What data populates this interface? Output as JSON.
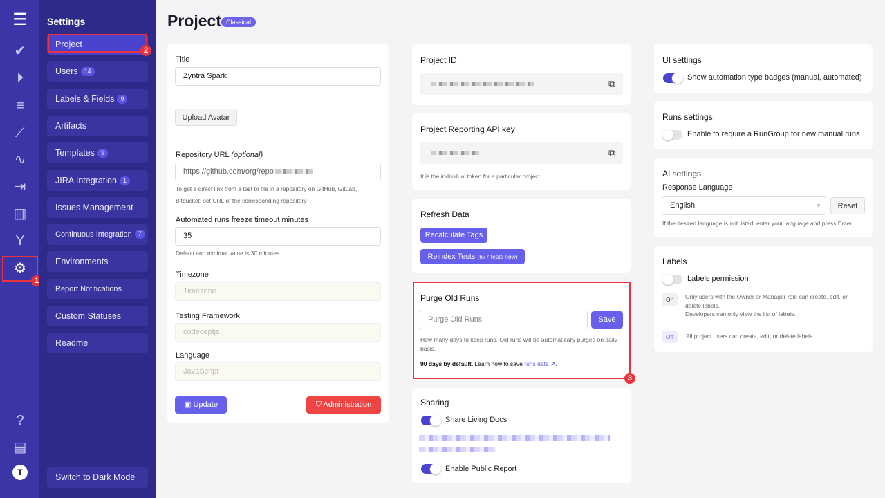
{
  "rail": {
    "icons": [
      "menu-icon",
      "check-icon",
      "play-circle-icon",
      "list-check-icon",
      "steps-icon",
      "pulse-icon",
      "import-icon",
      "chart-icon",
      "branch-icon",
      "gear-icon",
      "help-icon",
      "folder-icon",
      "avatar-icon"
    ]
  },
  "sidebar": {
    "title": "Settings",
    "items": [
      {
        "label": "Project",
        "badge": ""
      },
      {
        "label": "Users",
        "badge": "14"
      },
      {
        "label": "Labels & Fields",
        "badge": "9"
      },
      {
        "label": "Artifacts",
        "badge": ""
      },
      {
        "label": "Templates",
        "badge": "9"
      },
      {
        "label": "JIRA Integration",
        "badge": "1"
      },
      {
        "label": "Issues Management",
        "badge": ""
      },
      {
        "label": "Continuous Integration",
        "badge": "7"
      },
      {
        "label": "Environments",
        "badge": ""
      },
      {
        "label": "Report Notifications",
        "badge": ""
      },
      {
        "label": "Custom Statuses",
        "badge": ""
      },
      {
        "label": "Readme",
        "badge": ""
      }
    ],
    "dark_mode": "Switch to Dark Mode"
  },
  "markers": [
    "1",
    "2",
    "3"
  ],
  "page": {
    "title": "Project",
    "tag": "Classical"
  },
  "form": {
    "title_label": "Title",
    "title_value": "Zyntra Spark",
    "upload": "Upload Avatar",
    "repo_label": "Repository URL ",
    "repo_optional": "(optional)",
    "repo_value": "https://github.com/org/repo",
    "repo_hint": "To get a direct link from a test to file in a repository on GitHub, GitLab, Bitbucket, set URL of the corresponding repository",
    "freeze_label": "Automated runs freeze timeout minutes",
    "freeze_value": "35",
    "freeze_hint": "Default and minimal value is 30 minutes",
    "tz_label": "Timezone",
    "tz_placeholder": "Timezone",
    "fw_label": "Testing Framework",
    "fw_placeholder": "codeceptjs",
    "lang_label": "Language",
    "lang_placeholder": "JavaScript",
    "update": "Update",
    "admin": "Administration"
  },
  "project_id": {
    "title": "Project ID"
  },
  "api_key": {
    "title": "Project Reporting API key",
    "hint": "It is the individual token for a particular project"
  },
  "refresh": {
    "title": "Refresh Data",
    "recalc": "Recalculate Tags",
    "reindex": "Reindex Tests",
    "reindex_note": "(677 tests now)"
  },
  "purge": {
    "title": "Purge Old Runs",
    "placeholder": "Purge Old Runs",
    "save": "Save",
    "hint": "How many days to keep runs. Old runs will be automatically purged on daily basis.",
    "default_bold": "90 days by default.",
    "learn": " Learn how to save ",
    "link": "runs data",
    "end": "."
  },
  "sharing": {
    "title": "Sharing",
    "living_docs": "Share Living Docs",
    "living_docs_on": true,
    "public_report": "Enable Public Report",
    "public_report_on": true
  },
  "ui": {
    "title": "UI settings",
    "badges": "Show automation type badges (manual, automated)",
    "badges_on": true
  },
  "runs": {
    "title": "Runs settings",
    "rungroup": "Enable to require a RunGroup for new manual runs",
    "rungroup_on": false
  },
  "ai": {
    "title": "AI settings",
    "lang_label": "Response Language",
    "lang_value": "English",
    "reset": "Reset",
    "hint": "If the desired language is not listed, enter your language and press Enter"
  },
  "labels": {
    "title": "Labels",
    "perm": "Labels permission",
    "perm_on": false,
    "on": "On",
    "on_desc1": "Only users with the Owner or Manager role can create, edit, or delete labels.",
    "on_desc2": "Developers can only view the list of labels.",
    "off": "Off",
    "off_desc": "All project users can create, edit, or delete labels."
  },
  "colors": {
    "accent": "#6660ea",
    "rail": "#3b35a8",
    "sidebar": "#2e2a8a",
    "danger": "#ef4444",
    "marker": "#e8323c"
  }
}
